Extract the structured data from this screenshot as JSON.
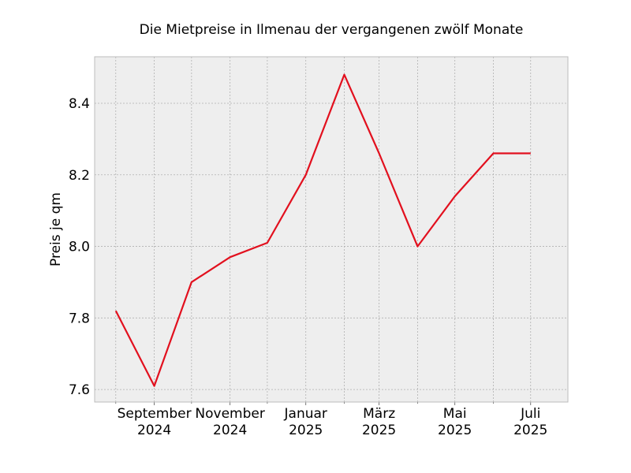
{
  "chart_data": {
    "type": "line",
    "title": "Die Mietpreise in Ilmenau der vergangenen zwölf Monate",
    "xlabel": "",
    "ylabel": "Preis je qm",
    "x": [
      "2024-08",
      "2024-09",
      "2024-10",
      "2024-11",
      "2024-12",
      "2025-01",
      "2025-02",
      "2025-03",
      "2025-04",
      "2025-05",
      "2025-06",
      "2025-07"
    ],
    "series": [
      {
        "values": [
          7.82,
          7.61,
          7.9,
          7.97,
          8.01,
          8.2,
          8.48,
          8.26,
          8.0,
          8.14,
          8.26,
          8.26
        ]
      }
    ],
    "xticks": [
      {
        "x": "2024-09",
        "label": [
          "September",
          "2024"
        ]
      },
      {
        "x": "2024-11",
        "label": [
          "November",
          "2024"
        ]
      },
      {
        "x": "2025-01",
        "label": [
          "Januar",
          "2025"
        ]
      },
      {
        "x": "2025-03",
        "label": [
          "März",
          "2025"
        ]
      },
      {
        "x": "2025-05",
        "label": [
          "Mai",
          "2025"
        ]
      },
      {
        "x": "2025-07",
        "label": [
          "Juli",
          "2025"
        ]
      }
    ],
    "yticks": [
      7.6,
      7.8,
      8.0,
      8.2,
      8.4
    ],
    "ytick_labels": [
      "7.6",
      "7.8",
      "8.0",
      "8.2",
      "8.4"
    ],
    "ylim": [
      7.565,
      8.53
    ],
    "xlim": [
      "2024-07-15",
      "2025-07-31"
    ],
    "grid": true,
    "colors": {
      "line": "#e2101e",
      "plot_background": "#eeeeee",
      "grid": "#b0b0b0",
      "spine": "#bcbcbc"
    }
  }
}
